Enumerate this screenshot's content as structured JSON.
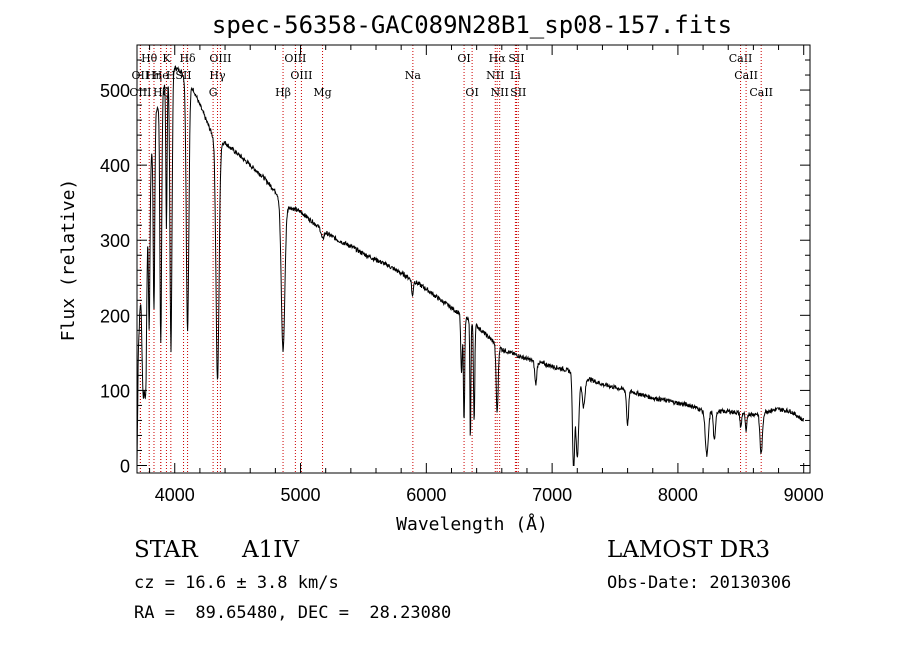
{
  "chart_data": {
    "type": "line",
    "title": "spec-56358-GAC089N28B1_sp08-157.fits",
    "xlabel": "Wavelength (Å)",
    "ylabel": "Flux (relative)",
    "xlim": [
      3700,
      9050
    ],
    "ylim": [
      -10,
      560
    ],
    "xticks": [
      4000,
      5000,
      6000,
      7000,
      8000,
      9000
    ],
    "yticks": [
      0,
      100,
      200,
      300,
      400,
      500
    ],
    "continuum": [
      [
        3700,
        0
      ],
      [
        3710,
        150
      ],
      [
        3730,
        240
      ],
      [
        3760,
        300
      ],
      [
        3800,
        390
      ],
      [
        3850,
        470
      ],
      [
        3900,
        500
      ],
      [
        3950,
        520
      ],
      [
        4000,
        530
      ],
      [
        4050,
        525
      ],
      [
        4100,
        510
      ],
      [
        4150,
        500
      ],
      [
        4200,
        480
      ],
      [
        4250,
        460
      ],
      [
        4300,
        440
      ],
      [
        4350,
        430
      ],
      [
        4400,
        430
      ],
      [
        4450,
        422
      ],
      [
        4500,
        415
      ],
      [
        4600,
        400
      ],
      [
        4700,
        385
      ],
      [
        4800,
        365
      ],
      [
        4900,
        345
      ],
      [
        5000,
        338
      ],
      [
        5100,
        324
      ],
      [
        5200,
        310
      ],
      [
        5300,
        300
      ],
      [
        5400,
        292
      ],
      [
        5500,
        282
      ],
      [
        5600,
        274
      ],
      [
        5700,
        266
      ],
      [
        5800,
        256
      ],
      [
        5900,
        246
      ],
      [
        6000,
        235
      ],
      [
        6100,
        222
      ],
      [
        6200,
        210
      ],
      [
        6300,
        198
      ],
      [
        6400,
        186
      ],
      [
        6500,
        170
      ],
      [
        6600,
        155
      ],
      [
        6700,
        148
      ],
      [
        6800,
        142
      ],
      [
        6900,
        137
      ],
      [
        7000,
        132
      ],
      [
        7100,
        128
      ],
      [
        7200,
        122
      ],
      [
        7300,
        115
      ],
      [
        7400,
        108
      ],
      [
        7500,
        104
      ],
      [
        7600,
        100
      ],
      [
        7700,
        95
      ],
      [
        7800,
        90
      ],
      [
        7900,
        87
      ],
      [
        8000,
        83
      ],
      [
        8100,
        80
      ],
      [
        8200,
        73
      ],
      [
        8300,
        72
      ],
      [
        8400,
        72
      ],
      [
        8500,
        70
      ],
      [
        8600,
        68
      ],
      [
        8700,
        72
      ],
      [
        8800,
        75
      ],
      [
        8900,
        72
      ],
      [
        9000,
        60
      ]
    ],
    "absorption": [
      [
        3750,
        180,
        10
      ],
      [
        3770,
        200,
        8
      ],
      [
        3797,
        200,
        6
      ],
      [
        3835,
        240,
        6
      ],
      [
        3889,
        330,
        7
      ],
      [
        3934,
        200,
        5
      ],
      [
        3970,
        370,
        8
      ],
      [
        4102,
        330,
        10
      ],
      [
        4340,
        320,
        12
      ],
      [
        4861,
        200,
        14
      ],
      [
        5175,
        12,
        10
      ],
      [
        5890,
        22,
        6
      ],
      [
        6280,
        80,
        6
      ],
      [
        6300,
        140,
        5
      ],
      [
        6350,
        160,
        4
      ],
      [
        6380,
        130,
        5
      ],
      [
        6563,
        90,
        8
      ],
      [
        6870,
        30,
        8
      ],
      [
        7170,
        130,
        8
      ],
      [
        7200,
        110,
        12
      ],
      [
        7250,
        40,
        12
      ],
      [
        7600,
        45,
        8
      ],
      [
        8230,
        60,
        12
      ],
      [
        8290,
        40,
        8
      ],
      [
        8500,
        20,
        6
      ],
      [
        8542,
        25,
        6
      ],
      [
        8662,
        55,
        10
      ]
    ],
    "lines": [
      {
        "label": "Hθ",
        "wave": 3797,
        "row": 1
      },
      {
        "label": "K",
        "wave": 3934,
        "row": 1
      },
      {
        "label": "Hδ",
        "wave": 4102,
        "row": 1
      },
      {
        "label": "OIII",
        "wave": 4363,
        "row": 1
      },
      {
        "label": "OIII",
        "wave": 4959,
        "row": 1
      },
      {
        "label": "OI",
        "wave": 6300,
        "row": 1
      },
      {
        "label": "Hα",
        "wave": 6563,
        "row": 1
      },
      {
        "label": "SII",
        "wave": 6717,
        "row": 1
      },
      {
        "label": "CaII",
        "wave": 8498,
        "row": 1
      },
      {
        "label": "OII",
        "wave": 3727,
        "row": 2
      },
      {
        "label": "Hη",
        "wave": 3835,
        "row": 2
      },
      {
        "label": "He",
        "wave": 3889,
        "row": 2
      },
      {
        "label": "H",
        "wave": 3969,
        "row": 2
      },
      {
        "label": "SII",
        "wave": 4070,
        "row": 2
      },
      {
        "label": "Hγ",
        "wave": 4340,
        "row": 2
      },
      {
        "label": "OIII",
        "wave": 5007,
        "row": 2
      },
      {
        "label": "Na",
        "wave": 5893,
        "row": 2
      },
      {
        "label": "NII",
        "wave": 6548,
        "row": 2
      },
      {
        "label": "Li",
        "wave": 6708,
        "row": 2
      },
      {
        "label": "CaII",
        "wave": 8542,
        "row": 2
      },
      {
        "label": "OIII",
        "wave": 3727,
        "row": 3
      },
      {
        "label": "Hζ",
        "wave": 3889,
        "row": 3
      },
      {
        "label": "G",
        "wave": 4305,
        "row": 3
      },
      {
        "label": "Hβ",
        "wave": 4861,
        "row": 3
      },
      {
        "label": "Mg",
        "wave": 5175,
        "row": 3
      },
      {
        "label": "OI",
        "wave": 6364,
        "row": 3
      },
      {
        "label": "NII",
        "wave": 6583,
        "row": 3
      },
      {
        "label": "SII",
        "wave": 6731,
        "row": 3
      },
      {
        "label": "CaII",
        "wave": 8662,
        "row": 3
      }
    ]
  },
  "footer": {
    "object_type": "STAR",
    "subclass": "A1IV",
    "survey": "LAMOST DR3",
    "cz": "cz = 16.6 ± 3.8 km/s",
    "obs_date": "Obs-Date: 20130306",
    "coords": "RA =  89.65480, DEC =  28.23080"
  },
  "colors": {
    "spectrum": "#000000",
    "line_marker": "#cc0000",
    "axis": "#000000"
  }
}
